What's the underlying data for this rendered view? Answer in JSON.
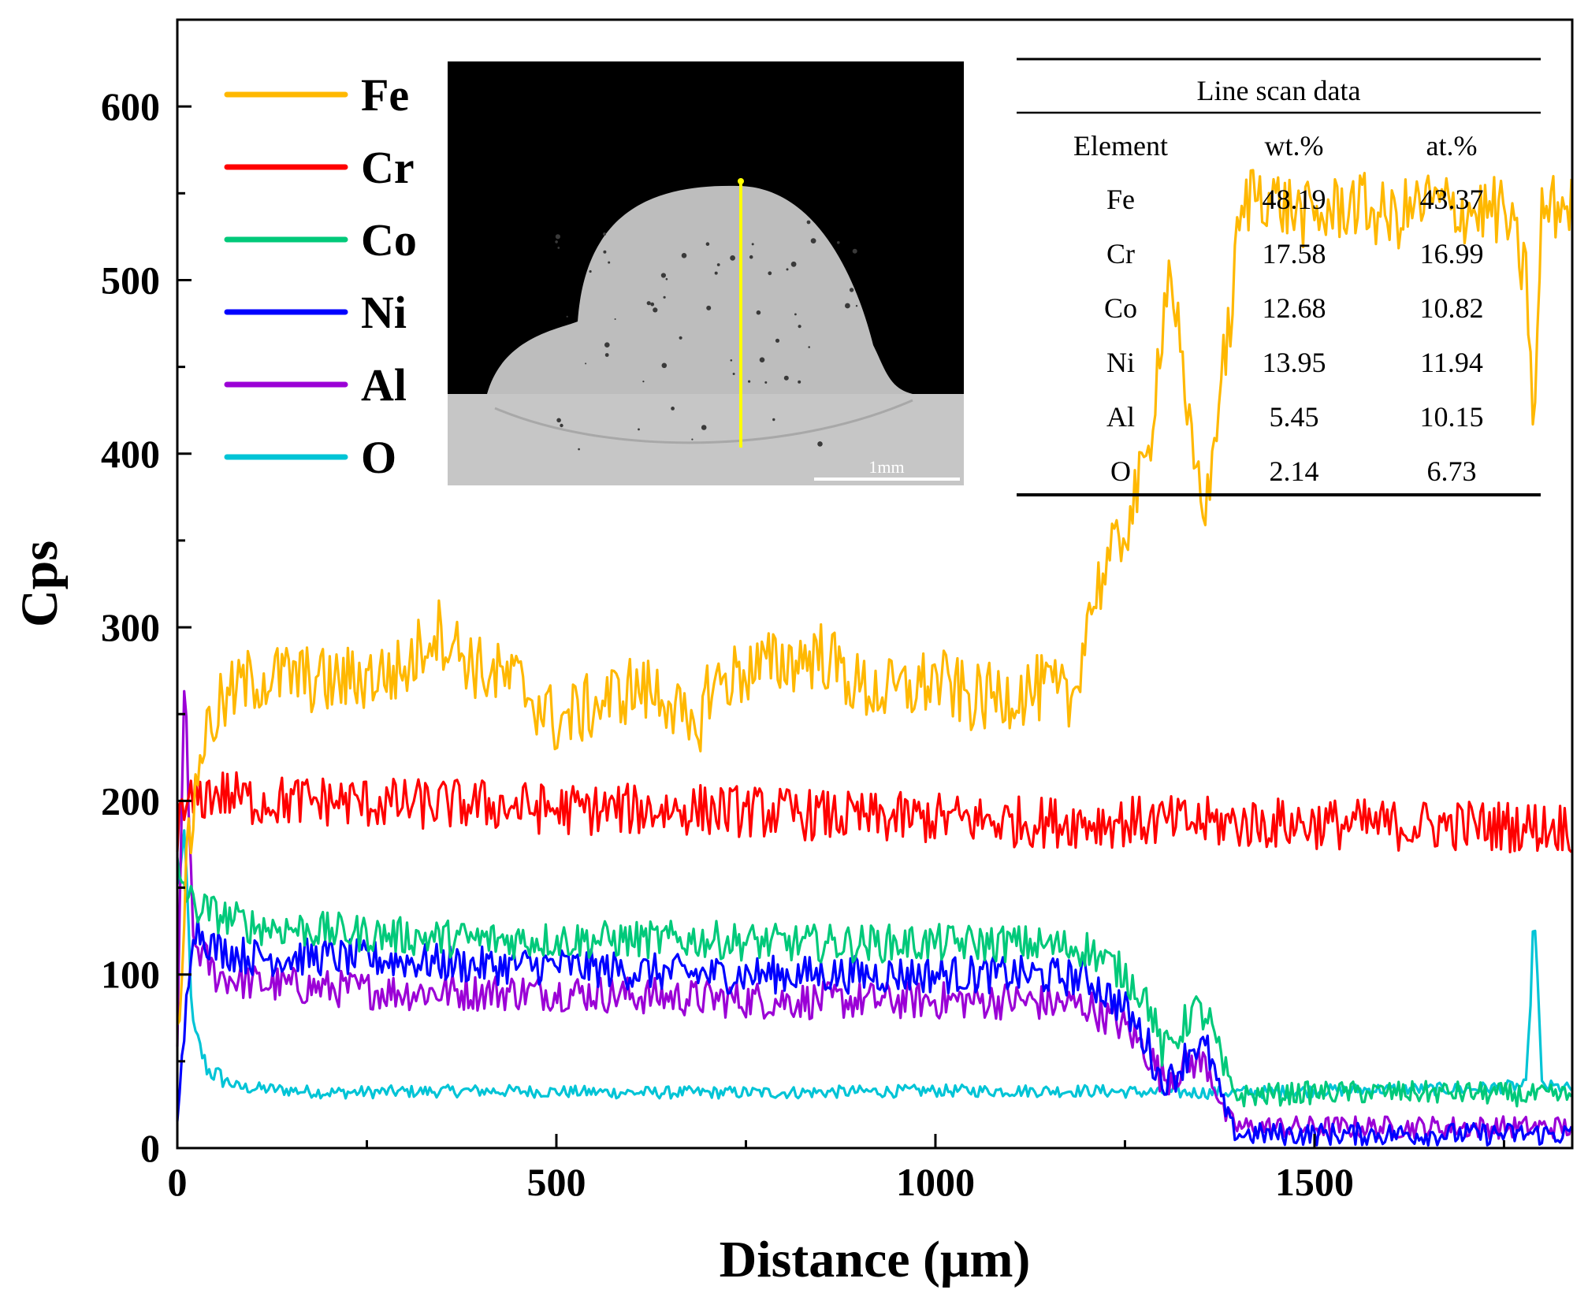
{
  "chart_data": {
    "type": "line",
    "xlabel": "Distance (μm)",
    "ylabel": "Cps",
    "xlim": [
      0,
      1840
    ],
    "ylim": [
      0,
      650
    ],
    "x_ticks": [
      0,
      500,
      1000,
      1500
    ],
    "y_ticks": [
      0,
      100,
      200,
      300,
      400,
      500,
      600
    ],
    "grid": false,
    "legend_position": "top-left",
    "series": [
      {
        "name": "Fe",
        "color": "#FFB800",
        "points": [
          [
            0,
            60
          ],
          [
            10,
            150
          ],
          [
            20,
            190
          ],
          [
            30,
            230
          ],
          [
            50,
            250
          ],
          [
            80,
            265
          ],
          [
            100,
            270
          ],
          [
            150,
            272
          ],
          [
            200,
            268
          ],
          [
            300,
            275
          ],
          [
            340,
            300
          ],
          [
            400,
            275
          ],
          [
            450,
            268
          ],
          [
            500,
            245
          ],
          [
            550,
            255
          ],
          [
            600,
            265
          ],
          [
            650,
            260
          ],
          [
            680,
            232
          ],
          [
            700,
            265
          ],
          [
            750,
            275
          ],
          [
            800,
            280
          ],
          [
            850,
            285
          ],
          [
            900,
            265
          ],
          [
            950,
            262
          ],
          [
            1000,
            270
          ],
          [
            1050,
            258
          ],
          [
            1100,
            262
          ],
          [
            1150,
            265
          ],
          [
            1180,
            255
          ],
          [
            1200,
            305
          ],
          [
            1220,
            330
          ],
          [
            1240,
            345
          ],
          [
            1260,
            370
          ],
          [
            1280,
            395
          ],
          [
            1290,
            440
          ],
          [
            1300,
            480
          ],
          [
            1310,
            510
          ],
          [
            1320,
            470
          ],
          [
            1330,
            420
          ],
          [
            1340,
            400
          ],
          [
            1350,
            380
          ],
          [
            1360,
            370
          ],
          [
            1370,
            420
          ],
          [
            1380,
            450
          ],
          [
            1390,
            480
          ],
          [
            1400,
            530
          ],
          [
            1420,
            555
          ],
          [
            1450,
            545
          ],
          [
            1500,
            535
          ],
          [
            1550,
            545
          ],
          [
            1600,
            535
          ],
          [
            1650,
            545
          ],
          [
            1700,
            540
          ],
          [
            1750,
            540
          ],
          [
            1780,
            500
          ],
          [
            1790,
            410
          ],
          [
            1800,
            540
          ],
          [
            1840,
            545
          ]
        ]
      },
      {
        "name": "Cr",
        "color": "#FF0000",
        "points": [
          [
            0,
            185
          ],
          [
            20,
            200
          ],
          [
            50,
            205
          ],
          [
            100,
            200
          ],
          [
            200,
            200
          ],
          [
            300,
            198
          ],
          [
            400,
            198
          ],
          [
            500,
            195
          ],
          [
            600,
            195
          ],
          [
            700,
            195
          ],
          [
            800,
            193
          ],
          [
            900,
            190
          ],
          [
            1000,
            190
          ],
          [
            1100,
            188
          ],
          [
            1200,
            188
          ],
          [
            1300,
            188
          ],
          [
            1400,
            187
          ],
          [
            1500,
            187
          ],
          [
            1600,
            186
          ],
          [
            1700,
            186
          ],
          [
            1800,
            185
          ],
          [
            1840,
            185
          ]
        ]
      },
      {
        "name": "Co",
        "color": "#00C97A",
        "points": [
          [
            0,
            160
          ],
          [
            20,
            140
          ],
          [
            50,
            135
          ],
          [
            100,
            128
          ],
          [
            200,
            125
          ],
          [
            300,
            122
          ],
          [
            400,
            120
          ],
          [
            500,
            120
          ],
          [
            600,
            120
          ],
          [
            700,
            120
          ],
          [
            800,
            118
          ],
          [
            900,
            118
          ],
          [
            1000,
            118
          ],
          [
            1100,
            118
          ],
          [
            1200,
            115
          ],
          [
            1250,
            100
          ],
          [
            1280,
            85
          ],
          [
            1300,
            55
          ],
          [
            1320,
            65
          ],
          [
            1340,
            80
          ],
          [
            1360,
            75
          ],
          [
            1380,
            45
          ],
          [
            1390,
            35
          ],
          [
            1400,
            30
          ],
          [
            1500,
            32
          ],
          [
            1600,
            32
          ],
          [
            1700,
            32
          ],
          [
            1800,
            30
          ],
          [
            1840,
            30
          ]
        ]
      },
      {
        "name": "Ni",
        "color": "#0000FF",
        "points": [
          [
            0,
            10
          ],
          [
            20,
            130
          ],
          [
            50,
            115
          ],
          [
            100,
            110
          ],
          [
            200,
            110
          ],
          [
            300,
            108
          ],
          [
            400,
            105
          ],
          [
            500,
            105
          ],
          [
            600,
            102
          ],
          [
            700,
            100
          ],
          [
            800,
            100
          ],
          [
            900,
            100
          ],
          [
            1000,
            100
          ],
          [
            1100,
            100
          ],
          [
            1200,
            98
          ],
          [
            1250,
            80
          ],
          [
            1280,
            60
          ],
          [
            1300,
            35
          ],
          [
            1320,
            45
          ],
          [
            1340,
            60
          ],
          [
            1360,
            55
          ],
          [
            1380,
            25
          ],
          [
            1390,
            12
          ],
          [
            1400,
            8
          ],
          [
            1500,
            8
          ],
          [
            1600,
            8
          ],
          [
            1700,
            8
          ],
          [
            1800,
            8
          ],
          [
            1840,
            8
          ]
        ]
      },
      {
        "name": "Al",
        "color": "#9B00D6",
        "points": [
          [
            0,
            60
          ],
          [
            10,
            280
          ],
          [
            20,
            120
          ],
          [
            50,
            100
          ],
          [
            100,
            95
          ],
          [
            200,
            92
          ],
          [
            300,
            90
          ],
          [
            400,
            90
          ],
          [
            500,
            90
          ],
          [
            600,
            88
          ],
          [
            700,
            86
          ],
          [
            800,
            85
          ],
          [
            900,
            85
          ],
          [
            1000,
            85
          ],
          [
            1100,
            85
          ],
          [
            1200,
            82
          ],
          [
            1250,
            70
          ],
          [
            1280,
            55
          ],
          [
            1300,
            40
          ],
          [
            1320,
            45
          ],
          [
            1340,
            50
          ],
          [
            1360,
            48
          ],
          [
            1380,
            20
          ],
          [
            1390,
            15
          ],
          [
            1400,
            12
          ],
          [
            1500,
            12
          ],
          [
            1600,
            12
          ],
          [
            1700,
            12
          ],
          [
            1800,
            12
          ],
          [
            1840,
            12
          ]
        ]
      },
      {
        "name": "O",
        "color": "#00C4D6",
        "points": [
          [
            0,
            150
          ],
          [
            10,
            180
          ],
          [
            20,
            70
          ],
          [
            40,
            45
          ],
          [
            80,
            35
          ],
          [
            200,
            32
          ],
          [
            400,
            33
          ],
          [
            600,
            32
          ],
          [
            800,
            32
          ],
          [
            1000,
            33
          ],
          [
            1200,
            33
          ],
          [
            1300,
            32
          ],
          [
            1400,
            32
          ],
          [
            1500,
            33
          ],
          [
            1600,
            34
          ],
          [
            1700,
            34
          ],
          [
            1780,
            36
          ],
          [
            1790,
            140
          ],
          [
            1800,
            36
          ],
          [
            1840,
            34
          ]
        ]
      }
    ],
    "inset_table": {
      "title": "Line scan data",
      "headers": [
        "Element",
        "wt.%",
        "at.%"
      ],
      "rows": [
        [
          "Fe",
          "48.19",
          "43.37"
        ],
        [
          "Cr",
          "17.58",
          "16.99"
        ],
        [
          "Co",
          "12.68",
          "10.82"
        ],
        [
          "Ni",
          "13.95",
          "11.94"
        ],
        [
          "Al",
          "5.45",
          "10.15"
        ],
        [
          "O",
          "2.14",
          "6.73"
        ]
      ]
    },
    "inset_image": {
      "scale_bar_label": "1mm"
    }
  }
}
